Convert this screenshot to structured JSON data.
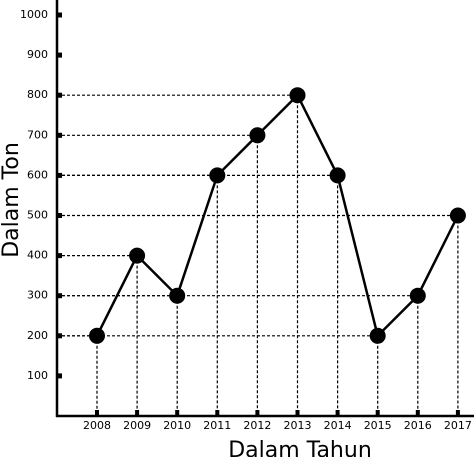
{
  "chart_data": {
    "type": "line",
    "x_label": "Dalam Tahun",
    "y_label": "Dalam Ton",
    "categories": [
      "2008",
      "2009",
      "2010",
      "2011",
      "2012",
      "2013",
      "2014",
      "2015",
      "2016",
      "2017"
    ],
    "values": [
      200,
      400,
      300,
      600,
      700,
      800,
      600,
      200,
      300,
      500
    ],
    "color": "#000000",
    "ylim": [
      0,
      1000
    ],
    "yticks": [
      100,
      200,
      300,
      400,
      500,
      600,
      700,
      800,
      900,
      1000
    ],
    "guide_lines": true
  }
}
